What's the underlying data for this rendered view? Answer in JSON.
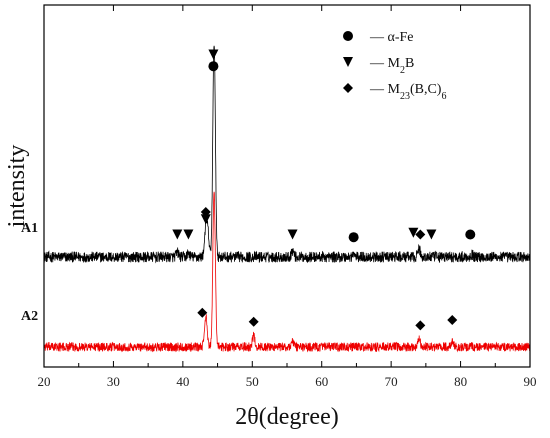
{
  "chart_data": {
    "type": "line",
    "title": "",
    "xlabel": "2θ(degree)",
    "ylabel": "intensity",
    "xlim": [
      20,
      90
    ],
    "xticks": [
      20,
      30,
      40,
      50,
      60,
      70,
      80,
      90
    ],
    "xtick_labels": [
      "20",
      "30",
      "40",
      "50",
      "60",
      "70",
      "80",
      "90"
    ],
    "yticks": false,
    "grid": false,
    "legend": {
      "placement": "top-right",
      "entries": [
        {
          "marker": "circle",
          "label_parts": [
            {
              "t": "— α-Fe"
            }
          ]
        },
        {
          "marker": "triangle-down",
          "label_parts": [
            {
              "t": "— M"
            },
            {
              "t": "2",
              "sub": true
            },
            {
              "t": "B"
            }
          ]
        },
        {
          "marker": "diamond",
          "label_parts": [
            {
              "t": "— M"
            },
            {
              "t": "23",
              "sub": true
            },
            {
              "t": "(B,C)"
            },
            {
              "t": "6",
              "sub": true
            }
          ]
        }
      ]
    },
    "series": [
      {
        "name": "A1",
        "color": "#000000",
        "baseline": 1.0,
        "noise": 0.06,
        "peaks": [
          {
            "x": 39.2,
            "h": 0.05
          },
          {
            "x": 40.8,
            "h": 0.04
          },
          {
            "x": 43.3,
            "h": 0.32
          },
          {
            "x": 43.6,
            "h": 0.25
          },
          {
            "x": 44.5,
            "h": 2.4
          },
          {
            "x": 55.8,
            "h": 0.07
          },
          {
            "x": 64.6,
            "h": 0.03
          },
          {
            "x": 74.0,
            "h": 0.09
          },
          {
            "x": 81.6,
            "h": 0.03
          }
        ],
        "markers": [
          {
            "x": 44.4,
            "y": 3.25,
            "shape": "triangle-down"
          },
          {
            "x": 44.4,
            "y": 3.12,
            "shape": "circle"
          },
          {
            "x": 43.3,
            "y": 1.5,
            "shape": "diamond"
          },
          {
            "x": 43.3,
            "y": 1.42,
            "shape": "triangle-down"
          },
          {
            "x": 39.2,
            "y": 1.25,
            "shape": "triangle-down"
          },
          {
            "x": 40.8,
            "y": 1.25,
            "shape": "triangle-down"
          },
          {
            "x": 55.8,
            "y": 1.25,
            "shape": "triangle-down"
          },
          {
            "x": 64.6,
            "y": 1.22,
            "shape": "circle"
          },
          {
            "x": 73.2,
            "y": 1.27,
            "shape": "triangle-down"
          },
          {
            "x": 74.2,
            "y": 1.25,
            "shape": "diamond"
          },
          {
            "x": 75.8,
            "y": 1.25,
            "shape": "triangle-down"
          },
          {
            "x": 81.4,
            "y": 1.25,
            "shape": "circle"
          }
        ]
      },
      {
        "name": "A2",
        "color": "#ee0000",
        "baseline": 0.0,
        "noise": 0.05,
        "peaks": [
          {
            "x": 43.3,
            "h": 0.35
          },
          {
            "x": 44.5,
            "h": 1.7
          },
          {
            "x": 50.2,
            "h": 0.12
          },
          {
            "x": 55.8,
            "h": 0.06
          },
          {
            "x": 74.0,
            "h": 0.1
          },
          {
            "x": 78.8,
            "h": 0.05
          }
        ],
        "markers": [
          {
            "x": 42.8,
            "y": 0.38,
            "shape": "diamond"
          },
          {
            "x": 50.2,
            "y": 0.28,
            "shape": "diamond"
          },
          {
            "x": 74.2,
            "y": 0.24,
            "shape": "diamond"
          },
          {
            "x": 78.8,
            "y": 0.3,
            "shape": "diamond"
          }
        ]
      }
    ]
  }
}
